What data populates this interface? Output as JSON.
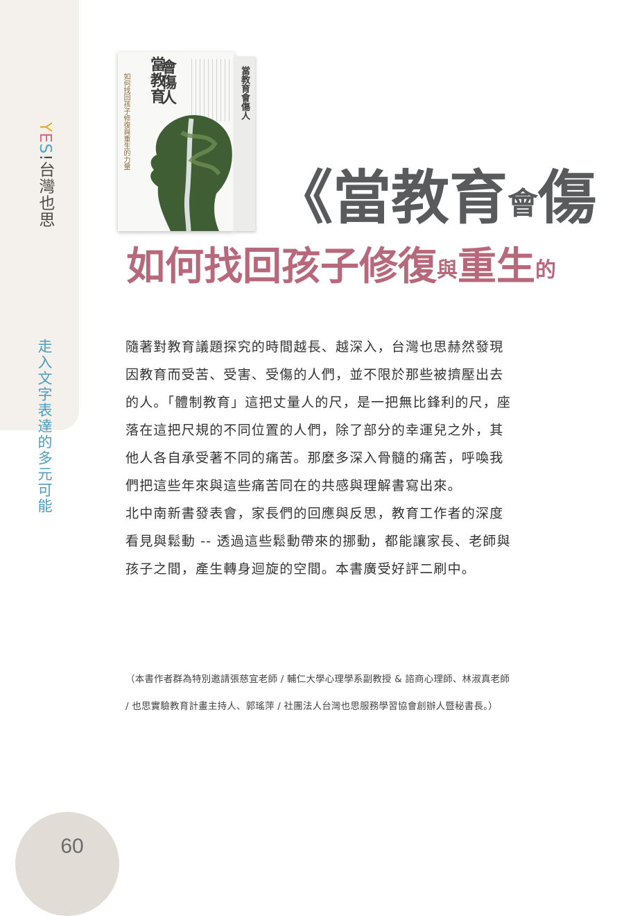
{
  "sidebar": {
    "brand": {
      "y": "Y",
      "e": "E",
      "s": "S",
      "bang": "!",
      "rest": "台灣也思"
    },
    "section_label": "走入文字表達的多元可能"
  },
  "page_number": "60",
  "book": {
    "title_a": "當教育",
    "title_b": "會傷人",
    "subtitle": "如何找回孩子修復與重生的力量",
    "spine_title": "當教育會傷人"
  },
  "headline": {
    "open": "《當教育",
    "small": "會",
    "end": "傷"
  },
  "subheadline": {
    "a": "如何找回孩子修復",
    "small_a": "與",
    "b": "重生",
    "small_b": "的"
  },
  "body_paragraphs": [
    "隨著對教育議題探究的時間越長、越深入，台灣也思赫然發現因教育而受苦、受害、受傷的人們，並不限於那些被擠壓出去的人。「體制教育」這把丈量人的尺，是一把無比鋒利的尺，座落在這把尺規的不同位置的人們，除了部分的幸運兒之外，其他人各自承受著不同的痛苦。那麼多深入骨髓的痛苦，呼喚我們把這些年來與這些痛苦同在的共感與理解書寫出來。",
    "北中南新書發表會，家長們的回應與反思，教育工作者的深度看見與鬆動 -- 透過這些鬆動帶來的挪動，都能讓家長、老師與孩子之間，產生轉身迴旋的空間。本書廣受好評二刷中。"
  ],
  "note": "（本書作者群為特別邀請張慈宜老師 / 輔仁大學心理學系副教授 & 諮商心理師、林淑真老師 / 也思實驗教育計畫主持人、郭瑤萍 / 社團法人台灣也思服務學習協會創辦人暨秘書長。）",
  "colors": {
    "headline": "#595a5c",
    "subheadline": "#b7687a",
    "section_label": "#4b9cbe",
    "sidebar_bg": "#f4f1ec"
  }
}
